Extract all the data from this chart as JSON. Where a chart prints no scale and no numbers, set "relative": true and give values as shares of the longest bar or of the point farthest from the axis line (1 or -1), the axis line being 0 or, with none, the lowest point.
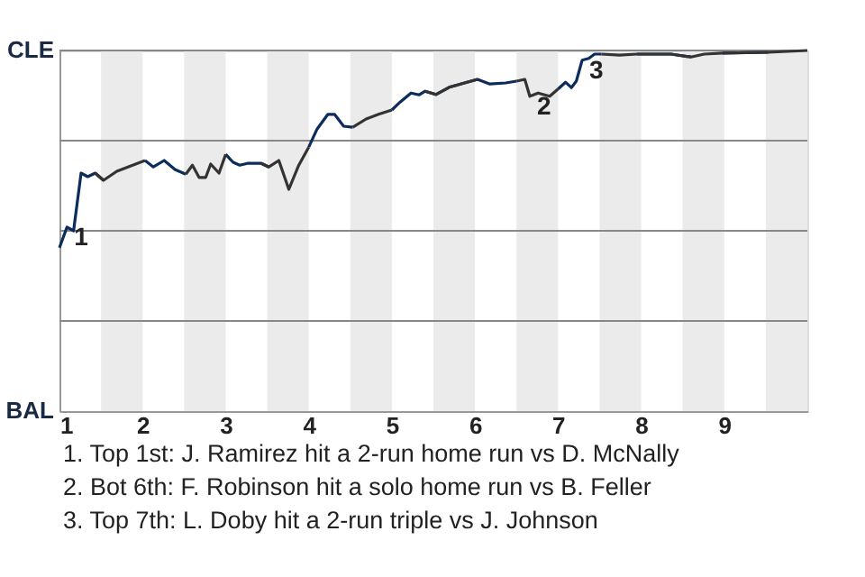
{
  "chart_data": {
    "type": "line",
    "relative": true,
    "xlim": [
      1,
      10
    ],
    "xticks": [
      1,
      2,
      3,
      4,
      5,
      6,
      7,
      8,
      9
    ],
    "x": [
      1.0,
      1.09,
      1.17,
      1.26,
      1.34,
      1.43,
      1.53,
      1.69,
      2.03,
      2.13,
      2.26,
      2.39,
      2.52,
      2.6,
      2.68,
      2.76,
      2.82,
      2.92,
      3.0,
      3.09,
      3.17,
      3.26,
      3.43,
      3.52,
      3.64,
      3.76,
      3.88,
      4.0,
      4.1,
      4.23,
      4.31,
      4.42,
      4.53,
      4.69,
      4.84,
      5.0,
      5.1,
      5.23,
      5.33,
      5.4,
      5.53,
      5.69,
      6.03,
      6.18,
      6.37,
      6.5,
      6.6,
      6.66,
      6.76,
      6.9,
      7.0,
      7.09,
      7.16,
      7.22,
      7.29,
      7.37,
      7.44,
      7.52,
      7.74,
      7.95,
      8.36,
      8.6,
      8.76,
      8.98,
      9.53,
      10.0
    ],
    "series": [
      {
        "color": "#0c2c5c",
        "values": [
          0.453,
          0.51,
          0.5,
          0.66,
          0.65,
          0.66,
          0.64,
          null,
          0.695,
          0.677,
          0.695,
          0.67,
          0.657,
          null,
          null,
          null,
          null,
          null,
          0.712,
          0.69,
          0.682,
          0.687,
          0.687,
          0.677,
          null,
          null,
          null,
          0.732,
          0.782,
          0.823,
          0.823,
          0.79,
          0.787,
          null,
          null,
          0.835,
          0.857,
          0.882,
          0.877,
          0.887,
          0.878,
          0.898,
          0.92,
          0.907,
          0.91,
          0.915,
          null,
          null,
          null,
          null,
          0.893,
          0.912,
          0.897,
          0.915,
          0.973,
          0.978,
          0.99,
          0.99,
          null,
          0.99,
          0.99,
          0.982,
          null,
          0.993,
          0.995,
          null
        ]
      },
      {
        "color": "#333333",
        "values": [
          null,
          null,
          null,
          null,
          null,
          0.66,
          0.64,
          0.665,
          0.695,
          null,
          null,
          null,
          0.657,
          0.682,
          0.648,
          0.648,
          0.685,
          0.66,
          0.712,
          null,
          null,
          null,
          0.687,
          0.677,
          0.695,
          0.615,
          0.682,
          0.732,
          null,
          null,
          null,
          null,
          0.787,
          0.81,
          0.823,
          0.835,
          null,
          null,
          null,
          0.887,
          0.878,
          0.898,
          0.92,
          null,
          null,
          0.915,
          0.92,
          0.873,
          0.882,
          0.873,
          0.893,
          null,
          null,
          null,
          null,
          null,
          null,
          0.99,
          0.987,
          0.99,
          0.99,
          0.982,
          0.99,
          0.993,
          0.995,
          1.0
        ]
      }
    ],
    "ref_lines": [
      {
        "axis": "y",
        "value": 0.25,
        "color": "#888888"
      },
      {
        "axis": "y",
        "value": 0.5,
        "color": "#888888"
      },
      {
        "axis": "y",
        "value": 0.75,
        "color": "#888888"
      },
      {
        "axis": "y",
        "value": 1.0,
        "color": "#888888"
      }
    ],
    "bands": [
      {
        "axis": "x",
        "from": 1.5,
        "to": 2,
        "color": "#ebebeb"
      },
      {
        "axis": "x",
        "from": 2.5,
        "to": 3,
        "color": "#ebebeb"
      },
      {
        "axis": "x",
        "from": 3.5,
        "to": 4,
        "color": "#ebebeb"
      },
      {
        "axis": "x",
        "from": 4.5,
        "to": 5,
        "color": "#ebebeb"
      },
      {
        "axis": "x",
        "from": 5.5,
        "to": 6,
        "color": "#ebebeb"
      },
      {
        "axis": "x",
        "from": 6.5,
        "to": 7,
        "color": "#ebebeb"
      },
      {
        "axis": "x",
        "from": 7.5,
        "to": 8,
        "color": "#ebebeb"
      },
      {
        "axis": "x",
        "from": 8.5,
        "to": 9,
        "color": "#ebebeb"
      },
      {
        "axis": "x",
        "from": 9.5,
        "to": 10,
        "color": "#ebebeb"
      }
    ],
    "annotations": [
      "CLE",
      "BAL",
      {
        "text": "1",
        "x": 1.09,
        "y": 0.51
      },
      {
        "text": "2",
        "x": 6.66,
        "y": 0.873
      },
      {
        "text": "3",
        "x": 7.29,
        "y": 0.973
      },
      "1. Top 1st: J. Ramirez hit a 2-run home run vs D. McNally",
      "2. Bot 6th: F. Robinson hit a solo home run vs B. Feller",
      "3. Top 7th: L. Doby hit a 2-run triple vs J. Johnson"
    ]
  }
}
